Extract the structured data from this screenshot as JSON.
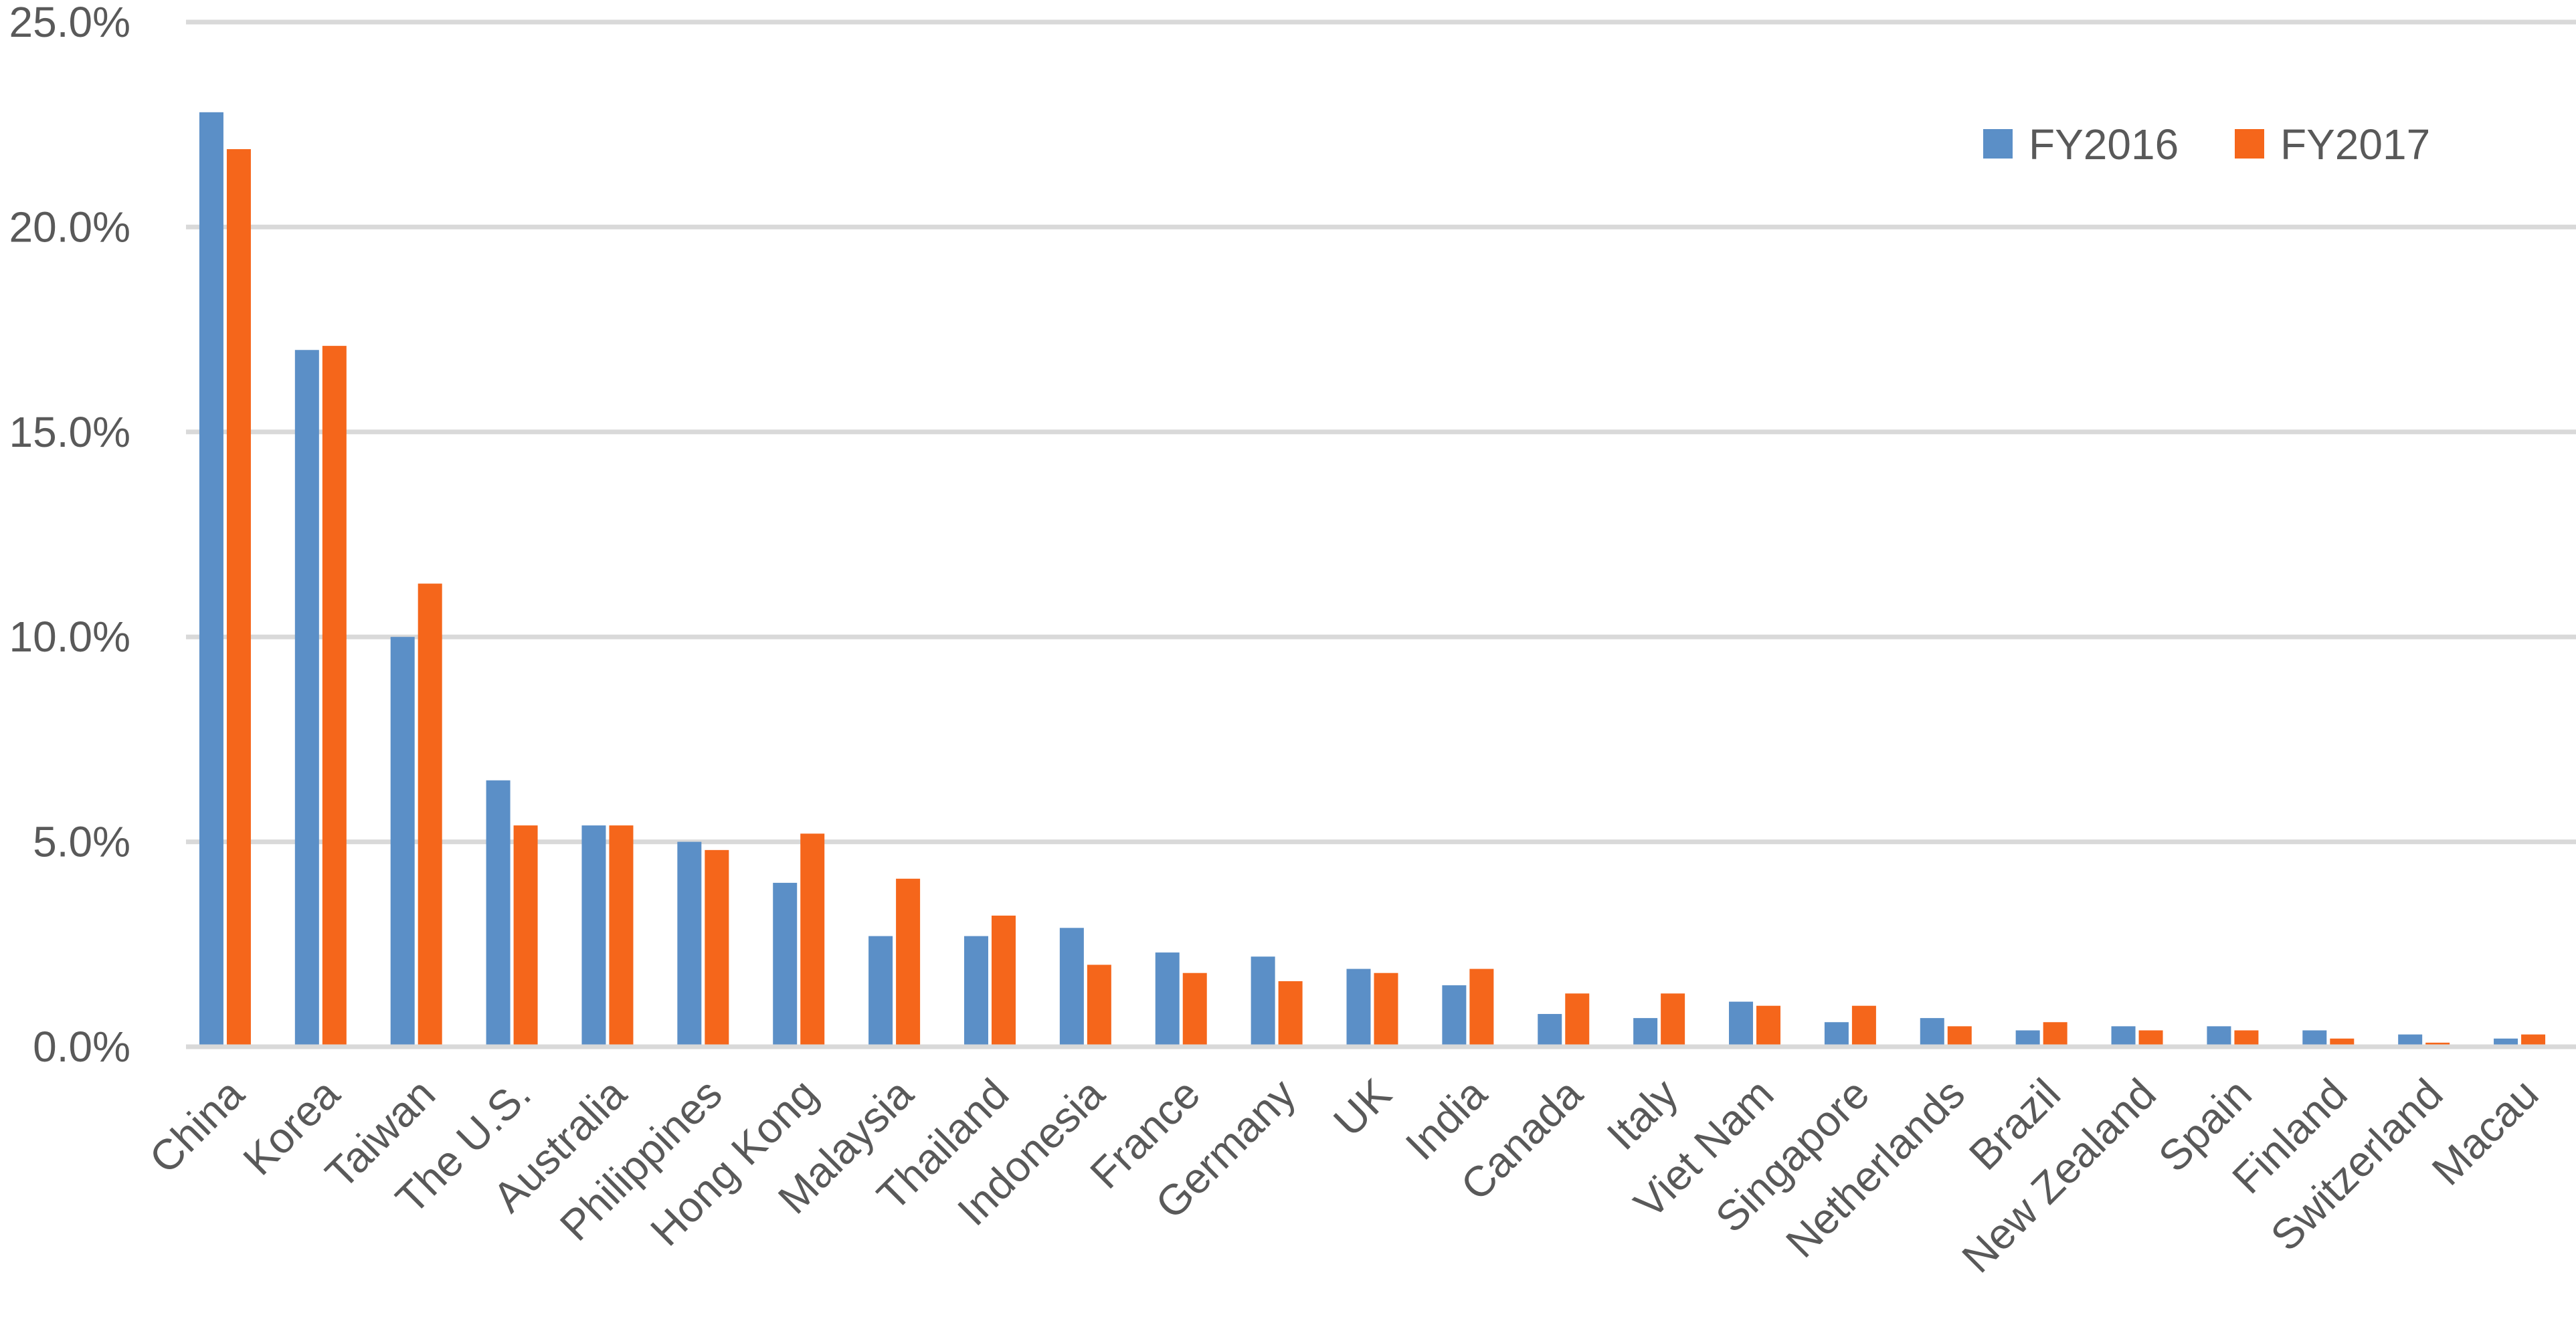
{
  "chart_data": {
    "type": "bar",
    "title": "",
    "xlabel": "",
    "ylabel": "",
    "ylim": [
      0,
      25
    ],
    "yticks": [
      "0.0%",
      "5.0%",
      "10.0%",
      "15.0%",
      "20.0%",
      "25.0%"
    ],
    "grid": true,
    "legend_position": "top-right",
    "categories": [
      "China",
      "Korea",
      "Taiwan",
      "The U.S.",
      "Australia",
      "Philippines",
      "Hong Kong",
      "Malaysia",
      "Thailand",
      "Indonesia",
      "France",
      "Germany",
      "UK",
      "India",
      "Canada",
      "Italy",
      "Viet Nam",
      "Singapore",
      "Netherlands",
      "Brazil",
      "New Zealand",
      "Spain",
      "Finland",
      "Switzerland",
      "Macau"
    ],
    "series": [
      {
        "name": "FY2016",
        "color": "#5b8fc7",
        "values": [
          22.8,
          17.0,
          10.0,
          6.5,
          5.4,
          5.0,
          4.0,
          2.7,
          2.7,
          2.9,
          2.3,
          2.2,
          1.9,
          1.5,
          0.8,
          0.7,
          1.1,
          0.6,
          0.7,
          0.4,
          0.5,
          0.5,
          0.4,
          0.3,
          0.2
        ]
      },
      {
        "name": "FY2017",
        "color": "#f5661b",
        "values": [
          21.9,
          17.1,
          11.3,
          5.4,
          5.4,
          4.8,
          5.2,
          4.1,
          3.2,
          2.0,
          1.8,
          1.6,
          1.8,
          1.9,
          1.3,
          1.3,
          1.0,
          1.0,
          0.5,
          0.6,
          0.4,
          0.4,
          0.2,
          0.1,
          0.3
        ]
      }
    ]
  }
}
